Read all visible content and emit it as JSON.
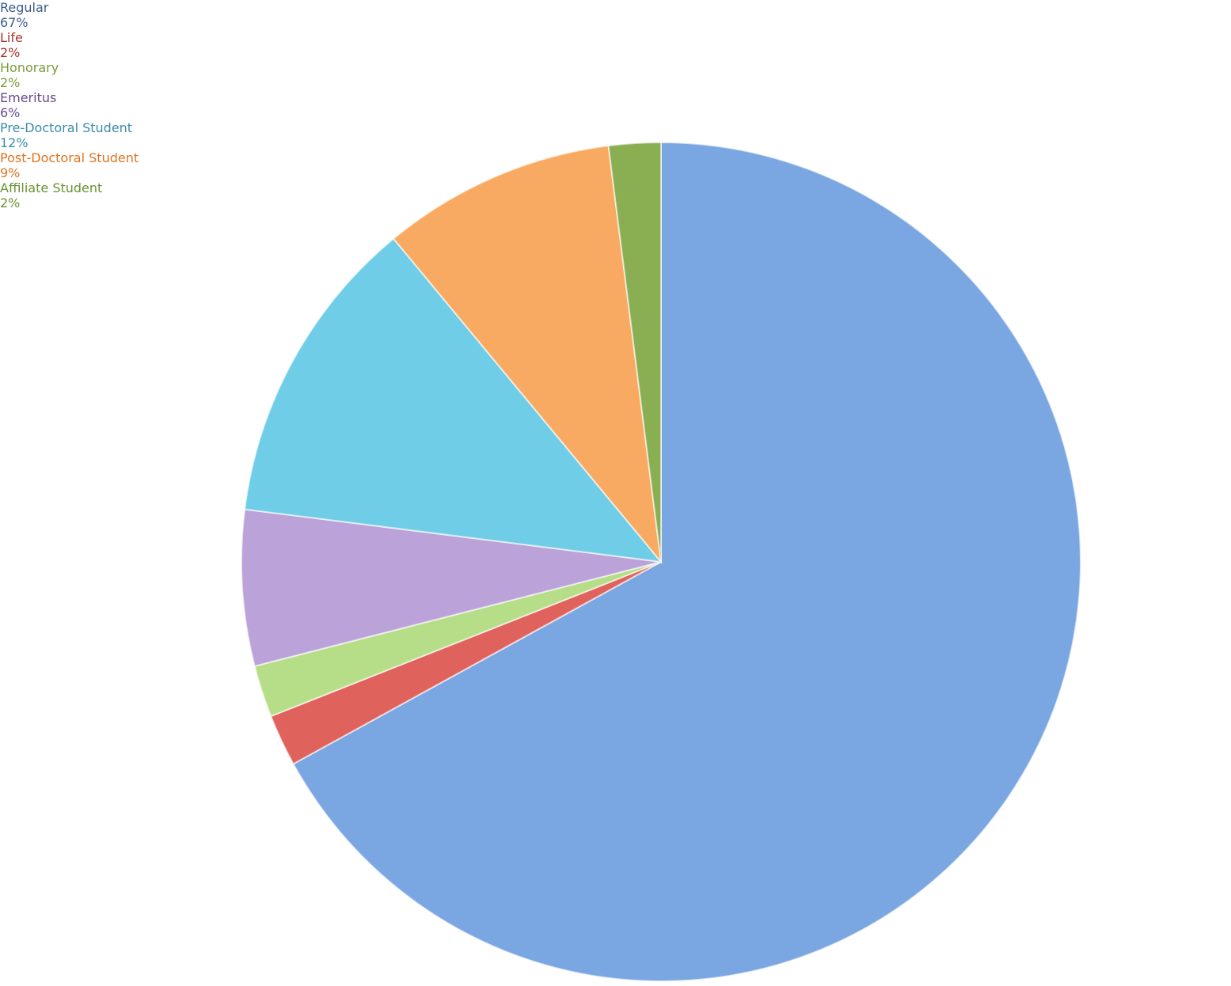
{
  "chart_data": {
    "type": "pie",
    "categories": [
      "Regular",
      "Life",
      "Honorary",
      "Emeritus",
      "Pre-Doctoral Student",
      "Post-Doctoral Student",
      "Affiliate Student"
    ],
    "values": [
      67,
      2,
      2,
      6,
      12,
      9,
      2
    ],
    "value_labels": [
      "67%",
      "2%",
      "2%",
      "6%",
      "12%",
      "9%",
      "2%"
    ],
    "colors": [
      "#7aa6e2",
      "#e0625c",
      "#b6de88",
      "#bba3da",
      "#6fcde8",
      "#f9aa62",
      "#8aae52"
    ],
    "label_colors": [
      "#3b5c8e",
      "#a33530",
      "#7a9c3a",
      "#6a4b8c",
      "#3a8caa",
      "#e0731f",
      "#6a9231"
    ]
  }
}
